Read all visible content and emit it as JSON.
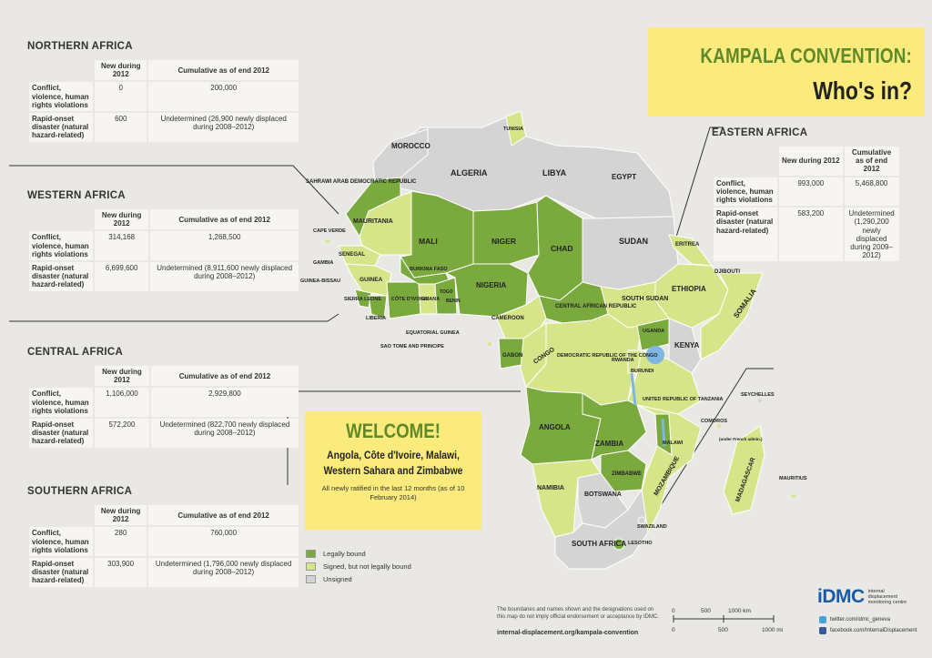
{
  "title": {
    "line1": "KAMPALA CONVENTION:",
    "line2": "Who's in?"
  },
  "columns": {
    "new": "New during 2012",
    "cumulative": "Cumulative as of end 2012",
    "cumulative_east": "Cumulative as of end 2012"
  },
  "row_labels": {
    "conflict": "Conflict, violence, human rights violations",
    "disaster": "Rapid-onset disaster (natural hazard-related)"
  },
  "regions": {
    "northern": {
      "name": "NORTHERN AFRICA",
      "conflict_new": "0",
      "conflict_cum": "200,000",
      "disaster_new": "600",
      "disaster_cum": "Undetermined (26,900 newly displaced during 2008–2012)"
    },
    "western": {
      "name": "WESTERN AFRICA",
      "conflict_new": "314,168",
      "conflict_cum": "1,268,500",
      "disaster_new": "6,699,600",
      "disaster_cum": "Undetermined (8,911,600 newly displaced during 2008–2012)"
    },
    "central": {
      "name": "CENTRAL AFRICA",
      "conflict_new": "1,106,000",
      "conflict_cum": "2,929,800",
      "disaster_new": "572,200",
      "disaster_cum": "Undetermined (822,700 newly displaced during 2008–2012)"
    },
    "southern": {
      "name": "SOUTHERN AFRICA",
      "conflict_new": "280",
      "conflict_cum": "760,000",
      "disaster_new": "303,900",
      "disaster_cum": "Undetermined (1,796,000 newly displaced during 2008–2012)"
    },
    "eastern": {
      "name": "EASTERN AFRICA",
      "conflict_new": "993,000",
      "conflict_cum": "5,468,800",
      "disaster_new": "583,200",
      "disaster_cum": "Undetermined (1,290,200 newly displaced during 2009–2012)"
    }
  },
  "welcome": {
    "title": "WELCOME!",
    "countries": "Angola, Côte d'Ivoire, Malawi, Western Sahara and Zimbabwe",
    "note": "All newly ratified in the last 12 months (as of 10 February 2014)"
  },
  "legend": [
    {
      "label": "Legally bound",
      "color": "#7aaa3e"
    },
    {
      "label": "Signed, but not legally bound",
      "color": "#d7e58a"
    },
    {
      "label": "Unsigned",
      "color": "#d4d4d4"
    }
  ],
  "countries": {
    "morocco": "MOROCCO",
    "algeria": "ALGERIA",
    "libya": "LIBYA",
    "egypt": "EGYPT",
    "tunisia": "TUNISIA",
    "wsahara": "SAHRAWI ARAB DEMOCRATIC REPUBLIC",
    "mauritania": "MAURITANIA",
    "mali": "MALI",
    "niger": "NIGER",
    "chad": "CHAD",
    "sudan": "SUDAN",
    "eritrea": "ERITREA",
    "djibouti": "DJIBOUTI",
    "ethiopia": "ETHIOPIA",
    "somalia": "SOMALIA",
    "capeverde": "CAPE VERDE",
    "senegal": "SENEGAL",
    "gambia": "GAMBIA",
    "guineabissau": "GUINEA-BISSAU",
    "guinea": "GUINEA",
    "sierraleone": "SIERRA LEONE",
    "liberia": "LIBERIA",
    "cotedivoire": "CÔTE D'IVOIRE",
    "burkinafaso": "BURKINA FASO",
    "ghana": "GHANA",
    "togo": "TOGO",
    "benin": "BENIN",
    "nigeria": "NIGERIA",
    "car": "CENTRAL AFRICAN REPUBLIC",
    "southsudan": "SOUTH SUDAN",
    "cameroon": "CAMEROON",
    "eqguinea": "EQUATORIAL GUINEA",
    "saotome": "SAO TOME AND PRINCIPE",
    "gabon": "GABON",
    "congo": "CONGO",
    "drc": "DEMOCRATIC REPUBLIC OF THE CONGO",
    "uganda": "UGANDA",
    "kenya": "KENYA",
    "rwanda": "RWANDA",
    "burundi": "BURUNDI",
    "tanzania": "UNITED REPUBLIC OF TANZANIA",
    "seychelles": "SEYCHELLES",
    "comoros": "COMOROS",
    "mayotte": "(under French admin.)",
    "angola": "ANGOLA",
    "zambia": "ZAMBIA",
    "malawi": "MALAWI",
    "mozambique": "MOZAMBIQUE",
    "madagascar": "MADAGASCAR",
    "mauritius": "MAURITIUS",
    "namibia": "NAMIBIA",
    "botswana": "BOTSWANA",
    "zimbabwe": "ZIMBABWE",
    "swaziland": "SWAZILAND",
    "lesotho": "LESOTHO",
    "southafrica": "SOUTH AFRICA"
  },
  "disclaimer": "The boundaries and names shown and the designations used on this map do not imply official endorsement or acceptance by IDMC.",
  "footer_url": "internal-displacement.org/kampala-convention",
  "scale": {
    "km": [
      "0",
      "500",
      "1000 km"
    ],
    "mi": [
      "0",
      "500",
      "1000 mi"
    ]
  },
  "idmc": {
    "name": "iDMC",
    "desc": "internal displacement monitoring centre"
  },
  "social": {
    "twitter": "twitter.com/idmc_geneva",
    "facebook": "facebook.com/InternalDisplacement"
  },
  "colors": {
    "legally_bound": "#7aaa3e",
    "signed": "#d7e58a",
    "unsigned": "#d4d4d4",
    "title_bg": "#fbea7c",
    "title_green": "#5e8a2c"
  }
}
